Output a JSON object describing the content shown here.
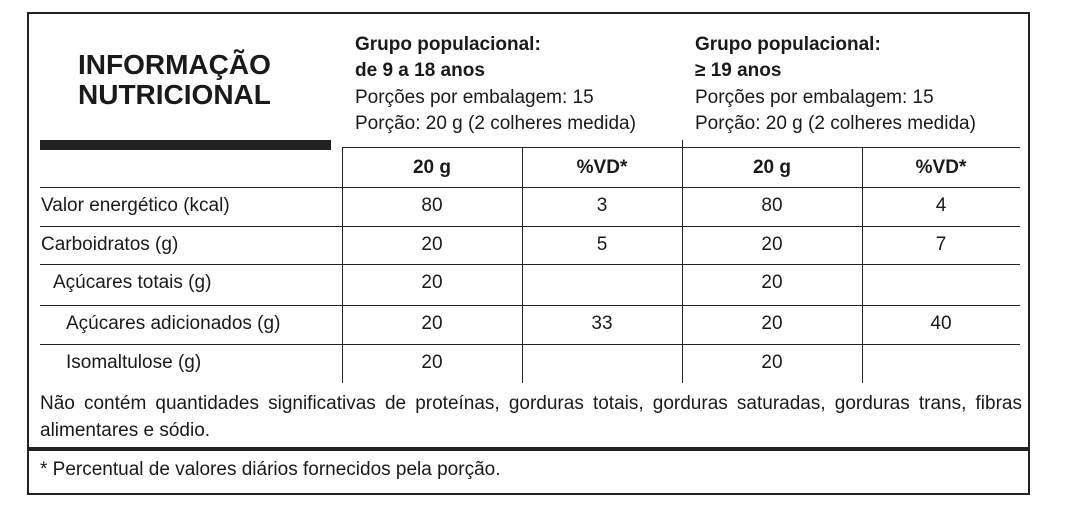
{
  "title": [
    "INFORMAÇÃO",
    "NUTRICIONAL"
  ],
  "groups": [
    {
      "heading": [
        "Grupo populacional:",
        "de 9 a 18 anos"
      ],
      "portions": "Porções por embalagem: 15",
      "serving": "Porção: 20 g (2 colheres medida)",
      "columns": [
        "20 g",
        "%VD*"
      ]
    },
    {
      "heading": [
        "Grupo populacional:",
        "≥ 19 anos"
      ],
      "portions": "Porções por embalagem: 15",
      "serving": "Porção: 20 g (2 colheres medida)",
      "columns": [
        "20 g",
        "%VD*"
      ]
    }
  ],
  "rows": [
    {
      "label": "Valor energético (kcal)",
      "values": [
        80,
        3,
        80,
        4
      ]
    },
    {
      "label": "Carboidratos (g)",
      "values": [
        20,
        5,
        20,
        7
      ]
    },
    {
      "label": "Açúcares totais (g)",
      "values": [
        20,
        null,
        20,
        null
      ]
    },
    {
      "label": "Açúcares adicionados (g)",
      "values": [
        20,
        33,
        20,
        40
      ]
    },
    {
      "label": "Isomaltulose (g)",
      "values": [
        20,
        null,
        20,
        null
      ]
    }
  ],
  "note": "Não contém quantidades significativas de proteínas, gorduras totais, gorduras saturadas, gorduras trans, fibras alimentares e sódio.",
  "footnote": "* Percentual de valores diários fornecidos pela porção."
}
